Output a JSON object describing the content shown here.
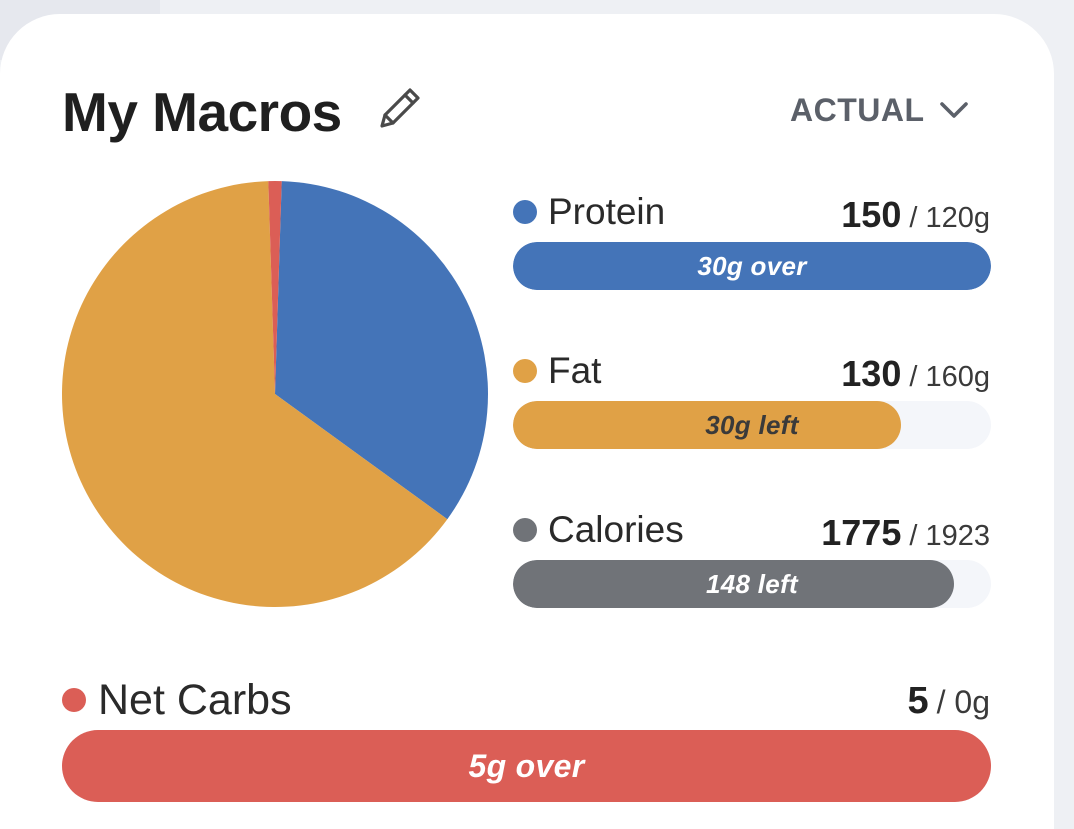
{
  "header": {
    "title": "My Macros",
    "edit_icon": "pencil-icon",
    "mode_label": "ACTUAL",
    "mode_icon": "chevron-down-icon"
  },
  "colors": {
    "protein": "#4474b8",
    "fat": "#e0a146",
    "calories": "#707378",
    "net_carbs": "#db5e56"
  },
  "macros": [
    {
      "key": "protein",
      "label": "Protein",
      "current": "150",
      "target": "/ 120g",
      "progress": 1.0,
      "status": "30g over",
      "status_color": "#ffffff"
    },
    {
      "key": "fat",
      "label": "Fat",
      "current": "130",
      "target": "/ 160g",
      "progress": 0.8125,
      "status": "30g left",
      "status_color": "#3a3a3a"
    },
    {
      "key": "calories",
      "label": "Calories",
      "current": "1775",
      "target": "/ 1923",
      "progress": 0.923,
      "status": "148 left",
      "status_color": "#ffffff"
    }
  ],
  "net_carbs": {
    "label": "Net Carbs",
    "current": "5",
    "target": "/ 0g",
    "progress": 1.0,
    "status": "5g over"
  },
  "chart_data": {
    "type": "pie",
    "categories": [
      "Protein",
      "Fat",
      "Net Carbs"
    ],
    "values": [
      150,
      130,
      5
    ],
    "colors": [
      "#4474b8",
      "#e0a146",
      "#db5e56"
    ],
    "slice_fractions": [
      0.345,
      0.645,
      0.01
    ]
  }
}
